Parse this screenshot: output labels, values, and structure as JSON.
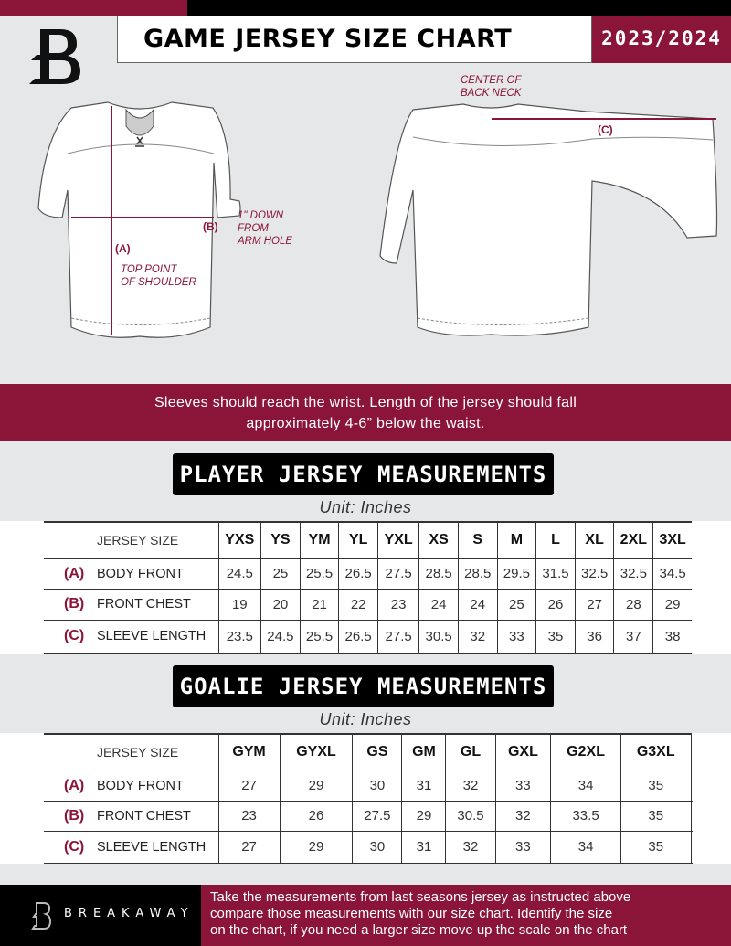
{
  "header": {
    "title": "GAME JERSEY SIZE CHART",
    "season": "2023/2024",
    "logo_letter": "B"
  },
  "colors": {
    "accent": "#8a1538",
    "background": "#e6e7e8",
    "dark": "#000000"
  },
  "diagram": {
    "center_back_neck": [
      "CENTER OF",
      "BACK NECK"
    ],
    "c_marker": "(C)",
    "b_marker": "(B)",
    "arm_hole": [
      "1\" DOWN",
      "FROM",
      "ARM HOLE"
    ],
    "a_marker": "(A)",
    "top_shoulder": [
      "TOP POINT",
      "OF SHOULDER"
    ]
  },
  "banner": {
    "lines": [
      "Sleeves should reach the wrist. Length of the jersey should fall",
      "approximately 4-6” below the waist."
    ]
  },
  "player": {
    "title": "PLAYER JERSEY MEASUREMENTS",
    "unit": "Unit: Inches",
    "header_label": "JERSEY SIZE",
    "sizes": [
      "YXS",
      "YS",
      "YM",
      "YL",
      "YXL",
      "XS",
      "S",
      "M",
      "L",
      "XL",
      "2XL",
      "3XL"
    ],
    "rows": [
      {
        "key": "(A)",
        "label": "BODY FRONT",
        "values": [
          "24.5",
          "25",
          "25.5",
          "26.5",
          "27.5",
          "28.5",
          "28.5",
          "29.5",
          "31.5",
          "32.5",
          "32.5",
          "34.5"
        ]
      },
      {
        "key": "(B)",
        "label": "FRONT CHEST",
        "values": [
          "19",
          "20",
          "21",
          "22",
          "23",
          "24",
          "24",
          "25",
          "26",
          "27",
          "28",
          "29"
        ]
      },
      {
        "key": "(C)",
        "label": "SLEEVE LENGTH",
        "values": [
          "23.5",
          "24.5",
          "25.5",
          "26.5",
          "27.5",
          "30.5",
          "32",
          "33",
          "35",
          "36",
          "37",
          "38"
        ]
      }
    ]
  },
  "goalie": {
    "title": "GOALIE JERSEY MEASUREMENTS",
    "unit": "Unit: Inches",
    "header_label": "JERSEY SIZE",
    "sizes": [
      "GYM",
      "GYXL",
      "GS",
      "GM",
      "GL",
      "GXL",
      "G2XL",
      "G3XL",
      ""
    ],
    "rows": [
      {
        "key": "(A)",
        "label": "BODY FRONT",
        "values": [
          "27",
          "29",
          "30",
          "31",
          "32",
          "33",
          "34",
          "35",
          ""
        ]
      },
      {
        "key": "(B)",
        "label": "FRONT CHEST",
        "values": [
          "23",
          "26",
          "27.5",
          "29",
          "30.5",
          "32",
          "33.5",
          "35",
          ""
        ]
      },
      {
        "key": "(C)",
        "label": "SLEEVE LENGTH",
        "values": [
          "27",
          "29",
          "30",
          "31",
          "32",
          "33",
          "34",
          "35",
          ""
        ]
      }
    ]
  },
  "footer": {
    "brand": "BREAKAWAY",
    "lines": [
      "Take the measurements from last seasons jersey as instructed above",
      "compare those measurements  with our size chart. Identify the size",
      "on the chart, if you need a larger size move up the scale on the chart"
    ]
  }
}
